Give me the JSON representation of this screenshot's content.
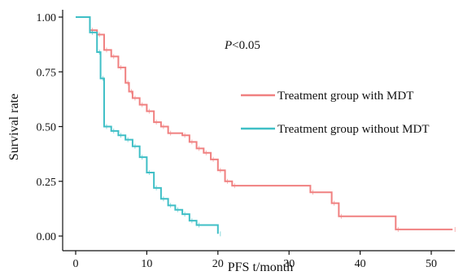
{
  "chart_data": {
    "type": "line",
    "subtype": "kaplan-meier-step",
    "xlabel": "PFS t/month",
    "ylabel": "Survival rate",
    "xlim": [
      0,
      53
    ],
    "ylim": [
      0,
      1
    ],
    "xticks": [
      "0",
      "10",
      "20",
      "30",
      "40",
      "50"
    ],
    "xtick_values": [
      0,
      10,
      20,
      30,
      40,
      50
    ],
    "yticks": [
      "0.00",
      "0.25",
      "0.50",
      "0.75",
      "1.00"
    ],
    "ytick_values": [
      0,
      0.25,
      0.5,
      0.75,
      1.0
    ],
    "grid": false,
    "legend_position": "right",
    "annotation": {
      "italic": "P",
      "rest": "<0.05"
    },
    "series": [
      {
        "name": "Treatment group with MDT",
        "color": "#f08080",
        "x": [
          0,
          2,
          3,
          4,
          5,
          6,
          7,
          7.5,
          8,
          9,
          10,
          11,
          12,
          13,
          15,
          16,
          17,
          18,
          19,
          20,
          21,
          22,
          33,
          36,
          37,
          45,
          53
        ],
        "y": [
          1.0,
          0.94,
          0.92,
          0.85,
          0.82,
          0.77,
          0.7,
          0.66,
          0.63,
          0.6,
          0.57,
          0.52,
          0.5,
          0.47,
          0.46,
          0.43,
          0.4,
          0.38,
          0.35,
          0.3,
          0.25,
          0.23,
          0.2,
          0.15,
          0.09,
          0.03,
          0.03
        ]
      },
      {
        "name": "Treatment group without MDT",
        "color": "#3fbfc6",
        "x": [
          0,
          2,
          3,
          3.5,
          4,
          5,
          6,
          7,
          8,
          9,
          10,
          11,
          12,
          13,
          14,
          15,
          16,
          17,
          20
        ],
        "y": [
          1.0,
          0.93,
          0.84,
          0.72,
          0.5,
          0.48,
          0.46,
          0.44,
          0.41,
          0.36,
          0.29,
          0.22,
          0.17,
          0.14,
          0.12,
          0.1,
          0.07,
          0.05,
          0.01
        ]
      }
    ]
  }
}
